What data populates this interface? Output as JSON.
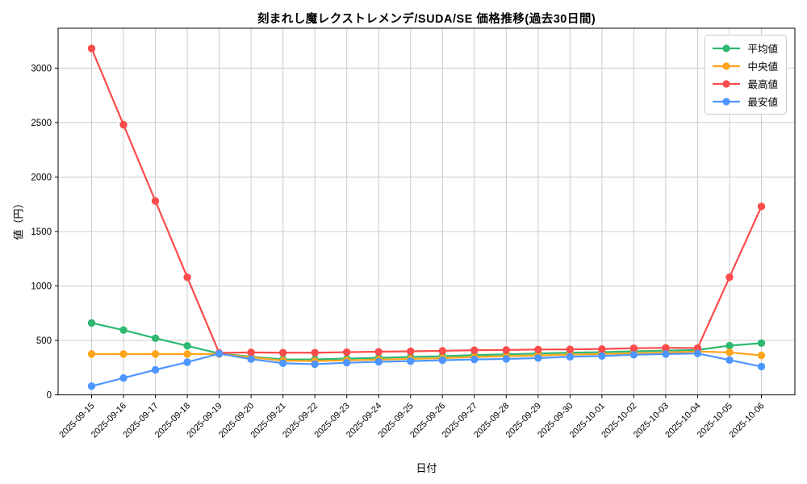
{
  "chart_data": {
    "type": "line",
    "title": "刻まれし魔レクストレメンデ/SUDA/SE 価格推移(過去30日間)",
    "xlabel": "日付",
    "ylabel": "値（円）",
    "x": [
      "2025-09-15",
      "2025-09-16",
      "2025-09-17",
      "2025-09-18",
      "2025-09-19",
      "2025-09-20",
      "2025-09-21",
      "2025-09-22",
      "2025-09-23",
      "2025-09-24",
      "2025-09-25",
      "2025-09-26",
      "2025-09-27",
      "2025-09-28",
      "2025-09-29",
      "2025-09-30",
      "2025-10-01",
      "2025-10-02",
      "2025-10-03",
      "2025-10-04",
      "2025-10-05",
      "2025-10-06"
    ],
    "series": [
      {
        "key": "mean",
        "name": "平均値",
        "color": "#2eb872",
        "values": [
          660,
          595,
          520,
          450,
          380,
          350,
          326,
          325,
          333,
          340,
          348,
          355,
          365,
          372,
          380,
          387,
          392,
          400,
          406,
          412,
          452,
          475
        ]
      },
      {
        "key": "median",
        "name": "中央値",
        "color": "#ffa51b",
        "values": [
          375,
          375,
          375,
          375,
          375,
          345,
          314,
          310,
          317,
          323,
          330,
          337,
          348,
          355,
          362,
          370,
          375,
          382,
          388,
          398,
          390,
          362
        ]
      },
      {
        "key": "max",
        "name": "最高値",
        "color": "#fb4b4b",
        "values": [
          3180,
          2480,
          1780,
          1080,
          385,
          390,
          387,
          387,
          392,
          396,
          400,
          404,
          410,
          412,
          416,
          418,
          421,
          428,
          432,
          430,
          1080,
          1730
        ]
      },
      {
        "key": "min",
        "name": "最安値",
        "color": "#4d96ff",
        "values": [
          80,
          155,
          230,
          300,
          378,
          328,
          290,
          282,
          295,
          303,
          310,
          318,
          325,
          330,
          338,
          350,
          357,
          368,
          375,
          380,
          320,
          260
        ]
      }
    ],
    "yticks": [
      0,
      500,
      1000,
      1500,
      2000,
      2500,
      3000
    ],
    "ylim": [
      0,
      3366
    ],
    "grid": true,
    "legend_position": "top-right",
    "grid_color": "#cccccc",
    "spine_color": "#000000"
  }
}
